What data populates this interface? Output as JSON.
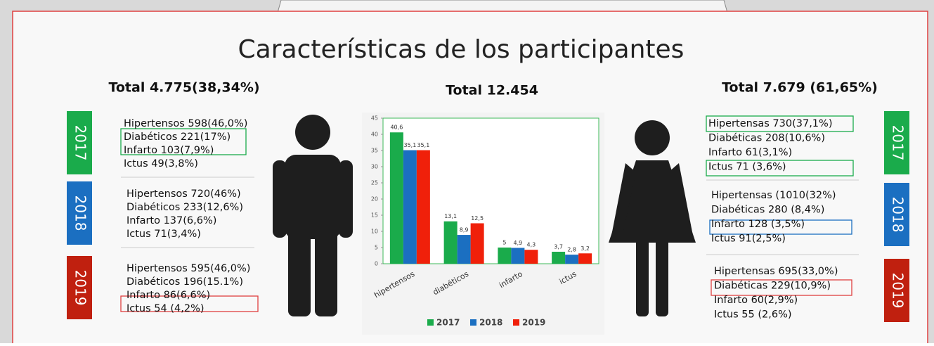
{
  "title": "Características de los participantes",
  "left": {
    "total": "Total 4.775(38,34%)",
    "groups": [
      {
        "year": "2017",
        "color": "#1aab4b",
        "lines": [
          "Hipertensos 598(46,0%)",
          "Diabéticos 221(17%)",
          "Infarto 103(7,9%)",
          "Ictus 49(3,8%)"
        ]
      },
      {
        "year": "2018",
        "color": "#1b6fc1",
        "lines": [
          "Hipertensos 720(46%)",
          "Diabéticos 233(12,6%)",
          "Infarto 137(6,6%)",
          "Ictus 71(3,4%)"
        ]
      },
      {
        "year": "2019",
        "color": "#c0200f",
        "lines": [
          "Hipertensos 595(46,0%)",
          "Diabéticos 196(15.1%)",
          "Infarto 86(6,6%)",
          "Ictus 54 (4,2%)"
        ]
      }
    ]
  },
  "right": {
    "total": "Total 7.679  (61,65%)",
    "groups": [
      {
        "year": "2017",
        "color": "#1aab4b",
        "lines": [
          "Hipertensas 730(37,1%)",
          "Diabéticas  208(10,6%)",
          "Infarto 61(3,1%)",
          "Ictus 71 (3,6%)"
        ]
      },
      {
        "year": "2018",
        "color": "#1b6fc1",
        "lines": [
          "Hipertensas (1010(32%)",
          "Diabéticas 280 (8,4%)",
          "Infarto  128 (3,5%)",
          "Ictus 91(2,5%)"
        ]
      },
      {
        "year": "2019",
        "color": "#c0200f",
        "lines": [
          "Hipertensas 695(33,0%)",
          "Diabéticas 229(10,9%)",
          "Infarto 60(2,9%)",
          "Ictus 55 (2,6%)"
        ]
      }
    ]
  },
  "chart_data": {
    "type": "bar",
    "title": "Total 12.454",
    "categories": [
      "hipertensos",
      "diabéticos",
      "infarto",
      "ictus"
    ],
    "series": [
      {
        "name": "2017",
        "color": "#1aab4b",
        "values": [
          40.6,
          13.1,
          5,
          3.7
        ],
        "value_labels": [
          "40,6",
          "13,1",
          "5",
          "3,7"
        ]
      },
      {
        "name": "2018",
        "color": "#1b6fc1",
        "values": [
          35.1,
          8.9,
          4.9,
          2.8
        ],
        "value_labels": [
          "35,1",
          "8,9",
          "4,9",
          "2,8"
        ]
      },
      {
        "name": "2019",
        "color": "#f0200a",
        "values": [
          35.1,
          12.5,
          4.3,
          3.2
        ],
        "value_labels": [
          "35,1",
          "12,5",
          "4,3",
          "3,2"
        ]
      }
    ],
    "ylim": [
      0,
      45
    ],
    "yticks": [
      0,
      5,
      10,
      15,
      20,
      25,
      30,
      35,
      40,
      45
    ],
    "legend": "bottom"
  }
}
